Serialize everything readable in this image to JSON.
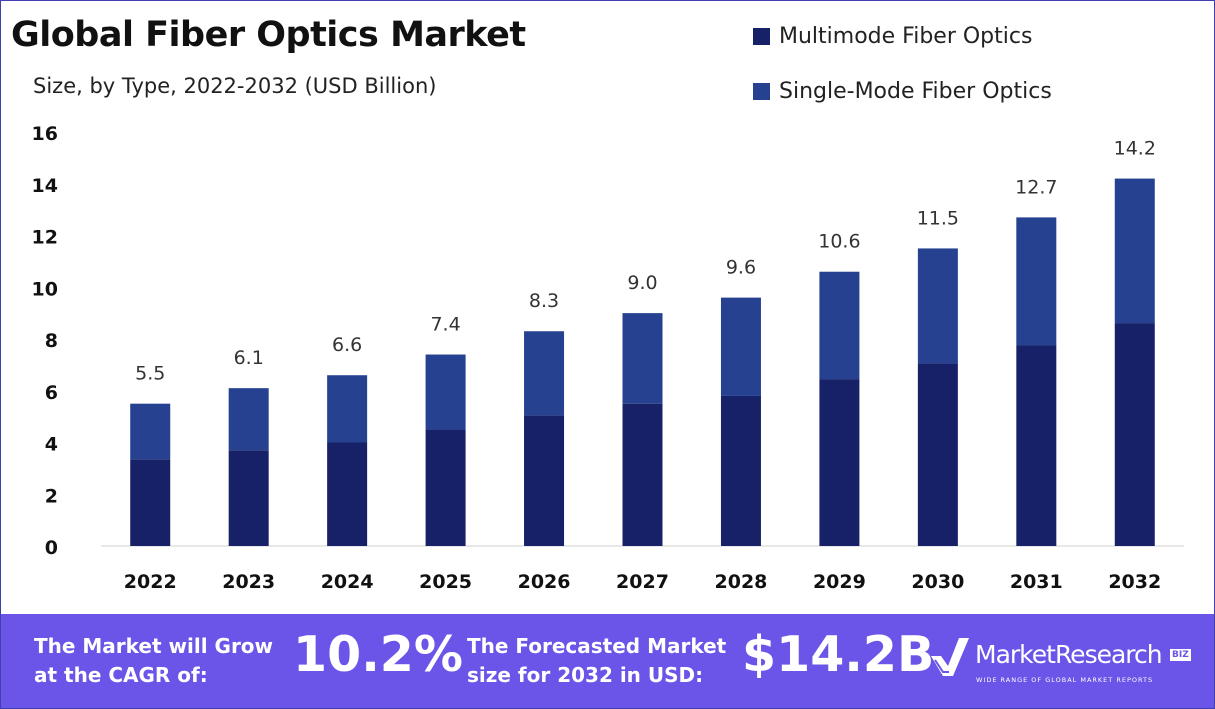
{
  "header": {
    "title": "Global Fiber Optics Market",
    "subtitle": "Size, by Type, 2022-2032 (USD Billion)"
  },
  "legend": [
    {
      "label": "Multimode Fiber Optics",
      "color": "#172168"
    },
    {
      "label": "Single-Mode Fiber Optics",
      "color": "#26418f"
    }
  ],
  "chart_data": {
    "type": "bar",
    "stacked": true,
    "title": "Global Fiber Optics Market",
    "subtitle": "Size, by Type, 2022-2032 (USD Billion)",
    "categories": [
      "2022",
      "2023",
      "2024",
      "2025",
      "2026",
      "2027",
      "2028",
      "2029",
      "2030",
      "2031",
      "2032"
    ],
    "series": [
      {
        "name": "Multimode Fiber Optics",
        "color": "#172168",
        "values": [
          3.35,
          3.7,
          4.0,
          4.5,
          5.05,
          5.5,
          5.8,
          6.45,
          7.05,
          7.75,
          8.6
        ]
      },
      {
        "name": "Single-Mode Fiber Optics",
        "color": "#26418f",
        "values": [
          2.15,
          2.4,
          2.6,
          2.9,
          3.25,
          3.5,
          3.8,
          4.15,
          4.45,
          4.95,
          5.6
        ]
      }
    ],
    "totals": [
      5.5,
      6.1,
      6.6,
      7.4,
      8.3,
      9.0,
      9.6,
      10.6,
      11.5,
      12.7,
      14.2
    ],
    "total_labels": [
      "5.5",
      "6.1",
      "6.6",
      "7.4",
      "8.3",
      "9.0",
      "9.6",
      "10.6",
      "11.5",
      "12.7",
      "14.2"
    ],
    "yticks": [
      0,
      2,
      4,
      6,
      8,
      10,
      12,
      14,
      16
    ],
    "ylim": [
      0,
      16
    ],
    "grid": false,
    "legend_position": "top-right"
  },
  "footer": {
    "cagr_label": "The Market will Grow at the CAGR of:",
    "cagr_value": "10.2%",
    "forecast_label": "The Forecasted Market size for 2032 in USD:",
    "forecast_value": "$14.2B",
    "background": "#6a55e8"
  },
  "brand": {
    "name": "MarketResearch",
    "badge": "BIZ",
    "tagline": "WIDE RANGE OF GLOBAL MARKET REPORTS"
  }
}
